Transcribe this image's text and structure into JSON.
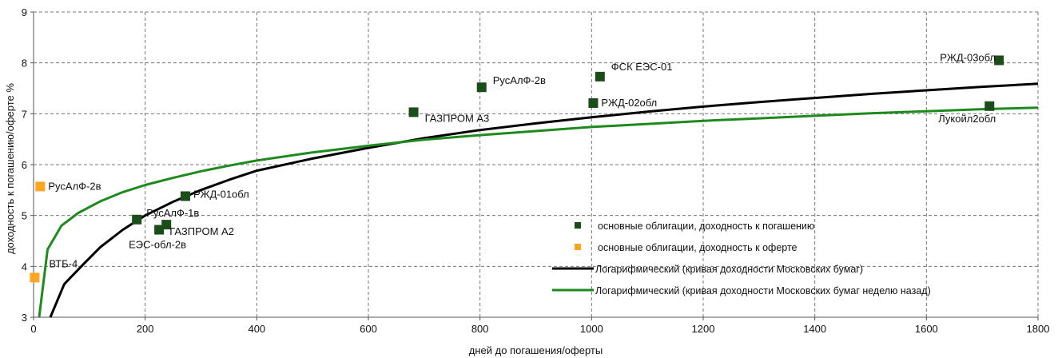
{
  "chart_data": {
    "type": "scatter",
    "xlabel": "дней до погашения/оферты",
    "ylabel": "доходность к погашению/оферте %",
    "xlim": [
      0,
      1800
    ],
    "ylim": [
      3,
      9
    ],
    "xticks": [
      0,
      200,
      400,
      600,
      800,
      1000,
      1200,
      1400,
      1600,
      1800
    ],
    "yticks": [
      3,
      4,
      5,
      6,
      7,
      8,
      9
    ],
    "grid": "dashed",
    "legend_position": "bottom-right",
    "colors": {
      "maturity": "#1a4d1a",
      "offer": "#ffa520",
      "moscow": "#000000",
      "moscow_prev": "#1e8a1e"
    },
    "series": [
      {
        "name": "основные облигации, доходность к погашению",
        "kind": "scatter",
        "color": "#1a4d1a",
        "points": [
          {
            "x": 185,
            "y": 4.92,
            "label": "РусАлФ-1в"
          },
          {
            "x": 225,
            "y": 4.72,
            "label": "ЕЭС-обл-2в"
          },
          {
            "x": 238,
            "y": 4.82,
            "label": "ГАЗПРОМ А2"
          },
          {
            "x": 272,
            "y": 5.38,
            "label": "РЖД-01обл"
          },
          {
            "x": 681,
            "y": 7.03,
            "label": "ГАЗПРОМ А3"
          },
          {
            "x": 803,
            "y": 7.52,
            "label": "РусАлФ-2в"
          },
          {
            "x": 1003,
            "y": 7.21,
            "label": "РЖД-02обл"
          },
          {
            "x": 1015,
            "y": 7.73,
            "label": "ФСК ЕЭС-01"
          },
          {
            "x": 1713,
            "y": 7.15,
            "label": "Лукойл2обл"
          },
          {
            "x": 1730,
            "y": 8.05,
            "label": "РЖД-03обл"
          }
        ]
      },
      {
        "name": "основные облигации, доходность к оферте",
        "kind": "scatter",
        "color": "#ffa520",
        "points": [
          {
            "x": 2,
            "y": 3.78,
            "label": "ВТБ-4"
          },
          {
            "x": 12,
            "y": 5.57,
            "label": "РусАлФ-2в"
          }
        ]
      },
      {
        "name": "Логарифмический (кривая доходности Московских бумаг)",
        "kind": "line",
        "color": "#000000",
        "x": [
          30,
          55,
          90,
          120,
          160,
          200,
          250,
          300,
          350,
          400,
          500,
          600,
          700,
          800,
          900,
          1000,
          1100,
          1200,
          1300,
          1400,
          1500,
          1600,
          1700,
          1800
        ],
        "y": [
          3.0,
          3.65,
          4.05,
          4.38,
          4.72,
          5.0,
          5.27,
          5.5,
          5.7,
          5.88,
          6.12,
          6.33,
          6.52,
          6.68,
          6.81,
          6.93,
          7.04,
          7.14,
          7.23,
          7.31,
          7.39,
          7.46,
          7.53,
          7.59
        ]
      },
      {
        "name": "Логарифмический (кривая доходности Московских бумаг неделю назад)",
        "kind": "line",
        "color": "#1e8a1e",
        "x": [
          10,
          25,
          50,
          80,
          120,
          160,
          200,
          250,
          300,
          350,
          400,
          500,
          600,
          700,
          800,
          900,
          1000,
          1100,
          1200,
          1300,
          1400,
          1500,
          1600,
          1700,
          1800
        ],
        "y": [
          3.0,
          4.33,
          4.8,
          5.05,
          5.28,
          5.46,
          5.6,
          5.74,
          5.87,
          5.98,
          6.08,
          6.24,
          6.37,
          6.49,
          6.58,
          6.66,
          6.74,
          6.8,
          6.86,
          6.91,
          6.96,
          7.01,
          7.05,
          7.09,
          7.12
        ]
      }
    ]
  }
}
